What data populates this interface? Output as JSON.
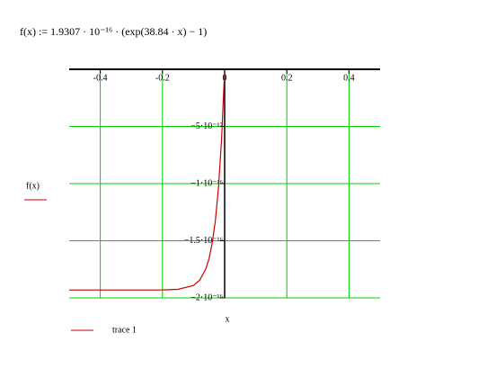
{
  "chart_data": {
    "type": "line",
    "formula": "f(x) := 1.9307 · 10⁻¹⁶ · (exp(38.84 · x) − 1)",
    "x_label": "x",
    "y_label": "f(x)",
    "x": [
      -0.5,
      -0.4,
      -0.3,
      -0.2,
      -0.15,
      -0.1,
      -0.08,
      -0.06,
      -0.05,
      -0.04,
      -0.03,
      -0.02,
      -0.01,
      0
    ],
    "series": [
      {
        "name": "trace 1",
        "color": "#cc0000",
        "values": [
          -1.9307e-16,
          -1.9307e-16,
          -1.9307e-16,
          -1.9299e-16,
          -1.925e-16,
          -1.891e-16,
          -1.844e-16,
          -1.743e-16,
          -1.654e-16,
          -1.522e-16,
          -1.329e-16,
          -1.043e-16,
          -6.21e-17,
          0
        ]
      }
    ],
    "xlim": [
      -0.5,
      0.5
    ],
    "ylim": [
      -2e-16,
      0
    ],
    "xticks": [
      -0.4,
      -0.2,
      0,
      0.2,
      0.4
    ],
    "yticks": [
      {
        "value": -5e-17,
        "label": "−5·10⁻¹⁷"
      },
      {
        "value": -1e-16,
        "label": "−1·10⁻¹⁶"
      },
      {
        "value": -1.5e-16,
        "label": "−1.5·10⁻¹⁶"
      },
      {
        "value": -2e-16,
        "label": "−2·10⁻¹⁶"
      }
    ],
    "grid": true,
    "grid_color": "#00cc00"
  }
}
